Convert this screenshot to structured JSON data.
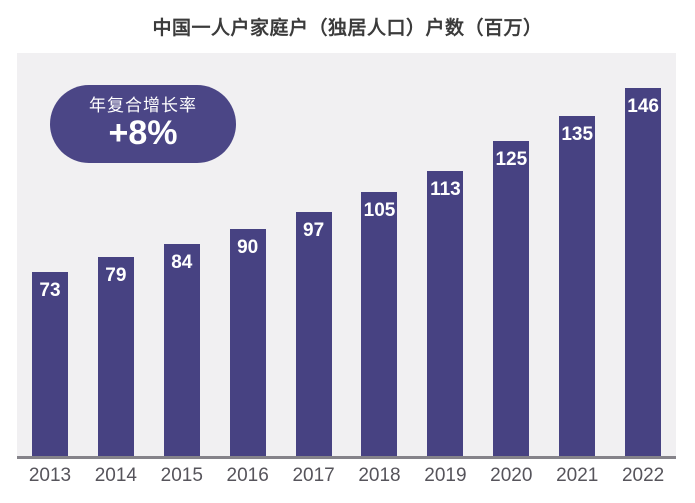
{
  "title": "中国一人户家庭户（独居人口）户数（百万）",
  "badge": {
    "label": "年复合增长率",
    "value": "+8%"
  },
  "colors": {
    "bar": "#474282",
    "badge_bg": "#4b4686",
    "badge_text": "#ffffff",
    "plot_bg": "#f1f0f2",
    "axis": "#85838a",
    "title_text": "#3b3b3b",
    "year_text": "#56545b",
    "bar_label": "#ffffff"
  },
  "chart_data": {
    "type": "bar",
    "categories": [
      "2013",
      "2014",
      "2015",
      "2016",
      "2017",
      "2018",
      "2019",
      "2020",
      "2021",
      "2022"
    ],
    "values": [
      73,
      79,
      84,
      90,
      97,
      105,
      113,
      125,
      135,
      146
    ],
    "title": "中国一人户家庭户（独居人口）户数（百万）",
    "xlabel": "",
    "ylabel": "",
    "ylim": [
      0,
      160
    ],
    "grid": false,
    "legend": false,
    "bar_label_position": "inside-top",
    "annotation": {
      "label": "年复合增长率",
      "value": "+8%"
    }
  }
}
